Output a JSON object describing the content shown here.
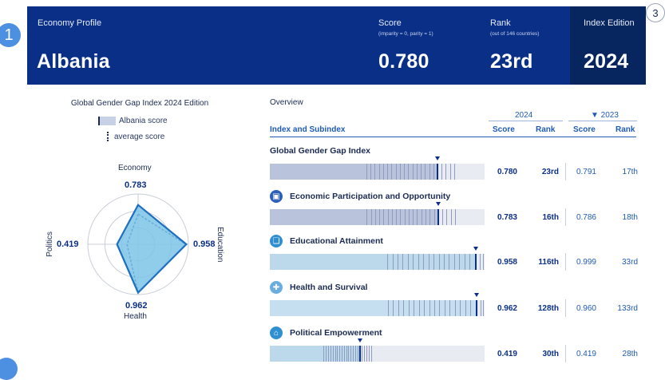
{
  "markers": {
    "m1": "1",
    "m3": "3"
  },
  "header": {
    "profile_label": "Economy Profile",
    "country": "Albania",
    "score_label": "Score",
    "score_note": "(imparity = 0, parity = 1)",
    "score_value": "0.780",
    "rank_label": "Rank",
    "rank_note": "(out of 146 countries)",
    "rank_value": "23rd",
    "edition_label": "Index Edition",
    "edition_value": "2024"
  },
  "left_panel": {
    "title": "Global Gender Gap Index 2024 Edition",
    "legend_score": "Albania score",
    "legend_average": "average score",
    "radar": {
      "economy_label": "Economy",
      "economy_value": "0.783",
      "education_label": "Education",
      "education_value": "0.958",
      "health_label": "Health",
      "health_value": "0.962",
      "politics_label": "Politics",
      "politics_value": "0.419",
      "economy_score": 0.783,
      "education_score": 0.958,
      "health_score": 0.962,
      "politics_score": 0.419
    }
  },
  "overview": {
    "title": "Overview",
    "year_current": "2024",
    "year_previous": "▼ 2023",
    "col_index": "Index and Subindex",
    "col_score": "Score",
    "col_rank": "Rank",
    "col_score_prev": "Score",
    "col_rank_prev": "Rank",
    "rows": [
      {
        "name": "Global Gender Gap Index",
        "score": "0.780",
        "rank": "23rd",
        "score_prev": "0.791",
        "rank_prev": "17th",
        "value": 0.78,
        "icon": "",
        "color": "#b9c3dc"
      },
      {
        "name": "Economic Participation and Opportunity",
        "score": "0.783",
        "rank": "16th",
        "score_prev": "0.786",
        "rank_prev": "18th",
        "value": 0.783,
        "icon": "briefcase-icon",
        "color": "#b9c3dc"
      },
      {
        "name": "Educational Attainment",
        "score": "0.958",
        "rank": "116th",
        "score_prev": "0.999",
        "rank_prev": "33rd",
        "value": 0.958,
        "icon": "book-icon",
        "color": "#bcd9ec"
      },
      {
        "name": "Health and Survival",
        "score": "0.962",
        "rank": "128th",
        "score_prev": "0.960",
        "rank_prev": "133rd",
        "value": 0.962,
        "icon": "health-cross-icon",
        "color": "#c6dff0"
      },
      {
        "name": "Political Empowerment",
        "score": "0.419",
        "rank": "30th",
        "score_prev": "0.419",
        "rank_prev": "28th",
        "value": 0.419,
        "icon": "government-building-icon",
        "color": "#bcd9ec"
      }
    ]
  },
  "colors": {
    "header_bg": "#0a2f87",
    "accent": "#1e5bb8",
    "radar_fill": "#7cc4e8"
  }
}
